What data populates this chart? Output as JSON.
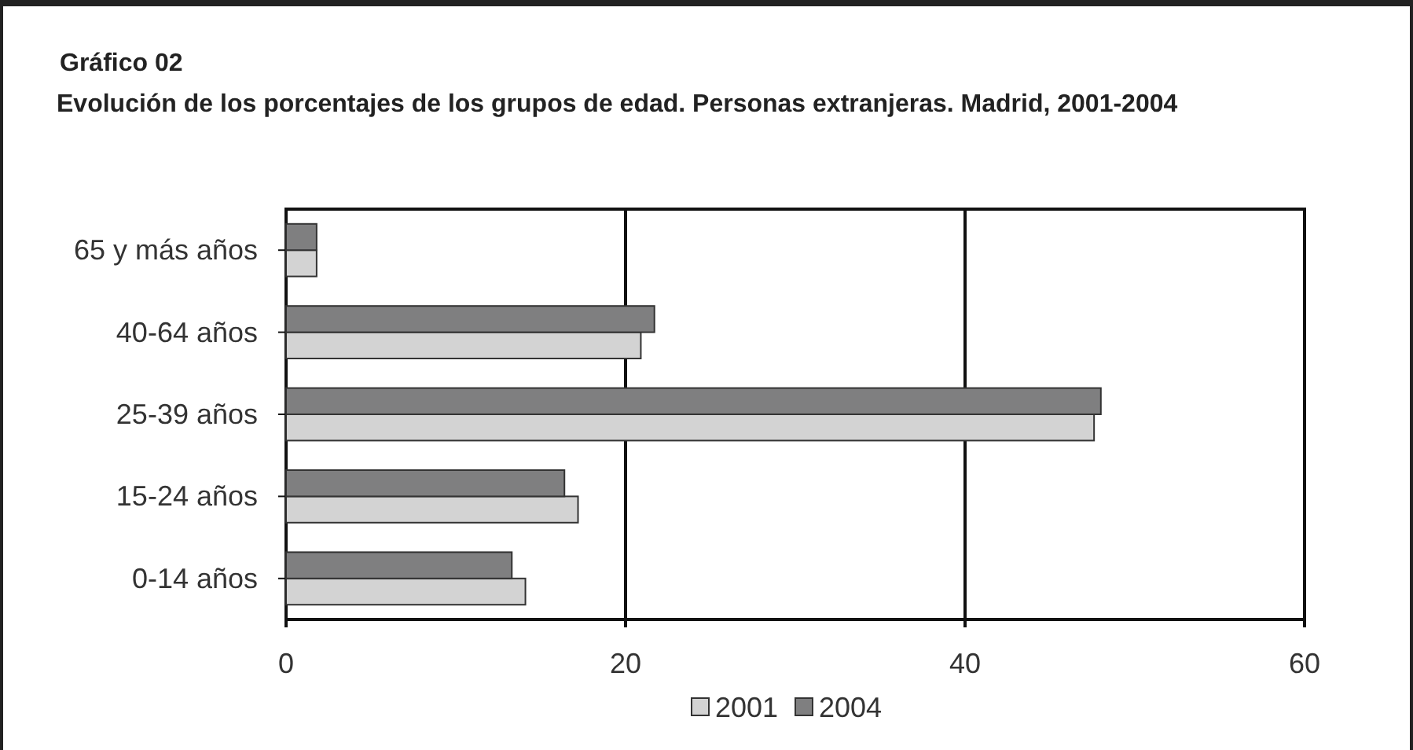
{
  "chart_data": {
    "type": "bar",
    "orientation": "horizontal",
    "title": "Gráfico 02",
    "subtitle": "Evolución de los porcentajes de los grupos de edad. Personas extranjeras. Madrid, 2001-2004",
    "categories": [
      "65 y más años",
      "40-64 años",
      "25-39 años",
      "15-24 años",
      "0-14 años"
    ],
    "series": [
      {
        "name": "2001",
        "color": "#d3d3d3",
        "values": [
          1.8,
          20.9,
          47.6,
          17.2,
          14.1
        ]
      },
      {
        "name": "2004",
        "color": "#7f7f80",
        "values": [
          1.8,
          21.7,
          48.0,
          16.4,
          13.3
        ]
      }
    ],
    "xlim": [
      0,
      60
    ],
    "xticks": [
      0,
      20,
      40,
      60
    ],
    "grid": "x",
    "legend": "bottom"
  }
}
